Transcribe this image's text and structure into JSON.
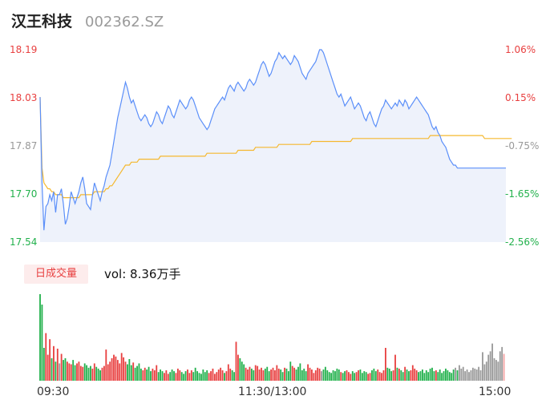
{
  "header": {
    "name": "汉王科技",
    "code": "002362.SZ"
  },
  "price_axis": {
    "labels": [
      "18.19",
      "18.03",
      "17.87",
      "17.70",
      "17.54"
    ]
  },
  "pct_axis": {
    "labels": [
      "1.06%",
      "0.15%",
      "-0.75%",
      "-1.65%",
      "-2.56%"
    ]
  },
  "volume": {
    "tag": "日成交量",
    "text": "vol: 8.36万手"
  },
  "time_axis": {
    "labels": [
      "09:30",
      "11:30/13:00",
      "15:00"
    ]
  },
  "colors": {
    "price_line": "#5b8ff9",
    "avg_line": "#f5b82e",
    "up": "#e84040",
    "down": "#22b14c",
    "neutral": "#999999",
    "area_fill": "#eef2fb"
  },
  "chart_data": [
    {
      "type": "line",
      "x_range": [
        0,
        240
      ],
      "ylim": [
        17.54,
        18.19
      ],
      "y_ticks": [
        18.19,
        18.03,
        17.87,
        17.7,
        17.54
      ],
      "series": [
        {
          "name": "price",
          "values": [
            18.03,
            17.74,
            17.58,
            17.66,
            17.67,
            17.7,
            17.68,
            17.71,
            17.64,
            17.7,
            17.7,
            17.72,
            17.67,
            17.6,
            17.62,
            17.66,
            17.71,
            17.69,
            17.67,
            17.69,
            17.71,
            17.74,
            17.76,
            17.72,
            17.67,
            17.66,
            17.65,
            17.7,
            17.74,
            17.72,
            17.7,
            17.68,
            17.71,
            17.73,
            17.76,
            17.78,
            17.8,
            17.84,
            17.88,
            17.92,
            17.96,
            17.99,
            18.02,
            18.05,
            18.08,
            18.06,
            18.03,
            18.01,
            18.02,
            18.0,
            17.98,
            17.96,
            17.95,
            17.96,
            17.97,
            17.96,
            17.94,
            17.93,
            17.94,
            17.96,
            17.98,
            17.97,
            17.95,
            17.94,
            17.96,
            17.98,
            18.0,
            17.99,
            17.97,
            17.96,
            17.98,
            18.0,
            18.02,
            18.01,
            18.0,
            17.99,
            18.0,
            18.02,
            18.03,
            18.02,
            18.0,
            17.98,
            17.96,
            17.95,
            17.94,
            17.93,
            17.92,
            17.93,
            17.95,
            17.97,
            17.99,
            18.0,
            18.01,
            18.02,
            18.03,
            18.02,
            18.04,
            18.06,
            18.07,
            18.06,
            18.05,
            18.07,
            18.08,
            18.07,
            18.06,
            18.05,
            18.06,
            18.08,
            18.09,
            18.08,
            18.07,
            18.08,
            18.1,
            18.12,
            18.14,
            18.15,
            18.14,
            18.12,
            18.1,
            18.11,
            18.13,
            18.15,
            18.16,
            18.18,
            18.17,
            18.16,
            18.17,
            18.16,
            18.15,
            18.14,
            18.15,
            18.17,
            18.16,
            18.15,
            18.13,
            18.11,
            18.1,
            18.09,
            18.11,
            18.12,
            18.13,
            18.14,
            18.15,
            18.17,
            18.19,
            18.19,
            18.18,
            18.16,
            18.14,
            18.12,
            18.1,
            18.08,
            18.06,
            18.04,
            18.03,
            18.04,
            18.02,
            18.0,
            18.01,
            18.02,
            18.03,
            18.01,
            17.99,
            18.0,
            18.01,
            18.0,
            17.98,
            17.96,
            17.95,
            17.97,
            17.98,
            17.96,
            17.94,
            17.93,
            17.95,
            17.97,
            17.99,
            18.0,
            18.02,
            18.01,
            18.0,
            17.99,
            18.0,
            18.01,
            18.0,
            18.02,
            18.01,
            18.0,
            18.02,
            18.01,
            17.99,
            18.0,
            18.01,
            18.02,
            18.03,
            18.02,
            18.01,
            18.0,
            17.99,
            17.98,
            17.97,
            17.95,
            17.93,
            17.92,
            17.93,
            17.91,
            17.9,
            17.88,
            17.87,
            17.86,
            17.84,
            17.82,
            17.81,
            17.8,
            17.8,
            17.79,
            17.79,
            17.79,
            17.79,
            17.79,
            17.79,
            17.79,
            17.79,
            17.79,
            17.79,
            17.79,
            17.79,
            17.79,
            17.79,
            17.79,
            17.79,
            17.79,
            17.79,
            17.79,
            17.79,
            17.79,
            17.79,
            17.79,
            17.79,
            17.79,
            17.79
          ]
        },
        {
          "name": "avg",
          "values": [
            18.03,
            17.79,
            17.74,
            17.73,
            17.72,
            17.72,
            17.71,
            17.71,
            17.7,
            17.7,
            17.7,
            17.7,
            17.69,
            17.69,
            17.69,
            17.69,
            17.69,
            17.69,
            17.69,
            17.69,
            17.69,
            17.7,
            17.7,
            17.7,
            17.7,
            17.7,
            17.7,
            17.7,
            17.71,
            17.71,
            17.71,
            17.71,
            17.71,
            17.71,
            17.72,
            17.72,
            17.73,
            17.73,
            17.74,
            17.75,
            17.76,
            17.77,
            17.78,
            17.79,
            17.8,
            17.8,
            17.8,
            17.81,
            17.81,
            17.81,
            17.81,
            17.82,
            17.82,
            17.82,
            17.82,
            17.82,
            17.82,
            17.82,
            17.82,
            17.82,
            17.82,
            17.82,
            17.83,
            17.83,
            17.83,
            17.83,
            17.83,
            17.83,
            17.83,
            17.83,
            17.83,
            17.83,
            17.83,
            17.83,
            17.83,
            17.83,
            17.83,
            17.83,
            17.83,
            17.83,
            17.83,
            17.83,
            17.83,
            17.83,
            17.83,
            17.83,
            17.84,
            17.84,
            17.84,
            17.84,
            17.84,
            17.84,
            17.84,
            17.84,
            17.84,
            17.84,
            17.84,
            17.84,
            17.84,
            17.84,
            17.84,
            17.84,
            17.85,
            17.85,
            17.85,
            17.85,
            17.85,
            17.85,
            17.85,
            17.85,
            17.85,
            17.86,
            17.86,
            17.86,
            17.86,
            17.86,
            17.86,
            17.86,
            17.86,
            17.86,
            17.86,
            17.86,
            17.86,
            17.87,
            17.87,
            17.87,
            17.87,
            17.87,
            17.87,
            17.87,
            17.87,
            17.87,
            17.87,
            17.87,
            17.87,
            17.87,
            17.87,
            17.87,
            17.87,
            17.87,
            17.88,
            17.88,
            17.88,
            17.88,
            17.88,
            17.88,
            17.88,
            17.88,
            17.88,
            17.88,
            17.88,
            17.88,
            17.88,
            17.88,
            17.88,
            17.88,
            17.88,
            17.88,
            17.88,
            17.88,
            17.88,
            17.89,
            17.89,
            17.89,
            17.89,
            17.89,
            17.89,
            17.89,
            17.89,
            17.89,
            17.89,
            17.89,
            17.89,
            17.89,
            17.89,
            17.89,
            17.89,
            17.89,
            17.89,
            17.89,
            17.89,
            17.89,
            17.89,
            17.89,
            17.89,
            17.89,
            17.89,
            17.89,
            17.89,
            17.89,
            17.89,
            17.89,
            17.89,
            17.89,
            17.89,
            17.89,
            17.89,
            17.89,
            17.89,
            17.89,
            17.89,
            17.9,
            17.9,
            17.9,
            17.9,
            17.9,
            17.9,
            17.9,
            17.9,
            17.9,
            17.9,
            17.9,
            17.9,
            17.9,
            17.9,
            17.9,
            17.9,
            17.9,
            17.9,
            17.9,
            17.9,
            17.9,
            17.9,
            17.9,
            17.9,
            17.9,
            17.9,
            17.9,
            17.9,
            17.89,
            17.89,
            17.89,
            17.89,
            17.89,
            17.89,
            17.89,
            17.89,
            17.89,
            17.89,
            17.89,
            17.89,
            17.89,
            17.89,
            17.89
          ]
        }
      ]
    },
    {
      "type": "bar",
      "x_range": [
        0,
        240
      ],
      "series": [
        {
          "name": "volume",
          "values": [
            100,
            88,
            38,
            55,
            30,
            48,
            26,
            40,
            22,
            37,
            20,
            31,
            24,
            26,
            22,
            20,
            19,
            24,
            18,
            20,
            22,
            17,
            16,
            20,
            18,
            15,
            17,
            14,
            20,
            16,
            14,
            12,
            15,
            17,
            36,
            19,
            22,
            26,
            30,
            28,
            24,
            20,
            32,
            27,
            22,
            19,
            25,
            18,
            21,
            15,
            17,
            20,
            14,
            12,
            15,
            13,
            16,
            11,
            14,
            12,
            18,
            10,
            13,
            11,
            9,
            12,
            8,
            10,
            13,
            11,
            9,
            14,
            12,
            10,
            8,
            11,
            13,
            9,
            12,
            10,
            15,
            11,
            9,
            8,
            13,
            10,
            12,
            9,
            11,
            14,
            8,
            10,
            13,
            15,
            12,
            9,
            11,
            19,
            14,
            12,
            10,
            45,
            30,
            26,
            22,
            19,
            15,
            13,
            16,
            14,
            12,
            18,
            17,
            13,
            15,
            12,
            14,
            16,
            11,
            13,
            15,
            12,
            18,
            14,
            13,
            10,
            15,
            14,
            11,
            22,
            17,
            15,
            13,
            16,
            20,
            12,
            14,
            11,
            19,
            15,
            13,
            9,
            12,
            15,
            14,
            11,
            13,
            16,
            12,
            10,
            9,
            12,
            11,
            14,
            13,
            10,
            9,
            11,
            12,
            10,
            8,
            11,
            9,
            10,
            12,
            13,
            9,
            11,
            10,
            8,
            9,
            12,
            14,
            11,
            13,
            10,
            9,
            12,
            38,
            15,
            14,
            11,
            12,
            30,
            15,
            14,
            12,
            10,
            16,
            13,
            11,
            12,
            18,
            14,
            12,
            10,
            11,
            13,
            9,
            12,
            10,
            14,
            15,
            11,
            12,
            10,
            13,
            9,
            11,
            14,
            12,
            10,
            9,
            13,
            15,
            12,
            18,
            14,
            16,
            11,
            13,
            10,
            12,
            15,
            14,
            13,
            16,
            12,
            33,
            19,
            22,
            30,
            34,
            43,
            26,
            24,
            22,
            34,
            39,
            31
          ]
        }
      ]
    }
  ]
}
